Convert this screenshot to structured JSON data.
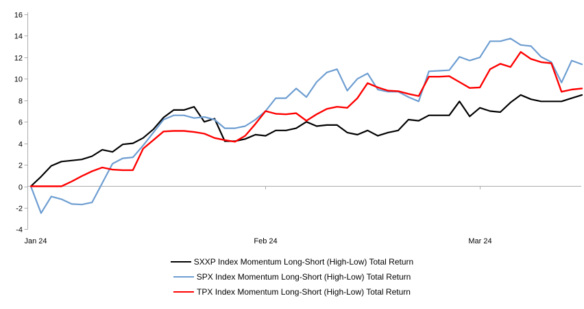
{
  "chart_data": {
    "type": "line",
    "title": "",
    "xlabel": "",
    "ylabel": "",
    "ylim": [
      -4,
      16
    ],
    "y_ticks": [
      16,
      14,
      12,
      10,
      8,
      6,
      4,
      2,
      0,
      -2,
      -4
    ],
    "grid": "zero-line-only",
    "legend_position": "bottom-center",
    "axis_color": "#ABABAB",
    "label_color": "#000000",
    "x_dates": [
      "2024-01-01",
      "2024-01-02",
      "2024-01-03",
      "2024-01-04",
      "2024-01-05",
      "2024-01-08",
      "2024-01-09",
      "2024-01-10",
      "2024-01-11",
      "2024-01-12",
      "2024-01-15",
      "2024-01-16",
      "2024-01-17",
      "2024-01-18",
      "2024-01-19",
      "2024-01-22",
      "2024-01-23",
      "2024-01-24",
      "2024-01-25",
      "2024-01-26",
      "2024-01-29",
      "2024-01-30",
      "2024-01-31",
      "2024-02-01",
      "2024-02-02",
      "2024-02-05",
      "2024-02-06",
      "2024-02-07",
      "2024-02-08",
      "2024-02-09",
      "2024-02-12",
      "2024-02-13",
      "2024-02-14",
      "2024-02-15",
      "2024-02-16",
      "2024-02-19",
      "2024-02-20",
      "2024-02-21",
      "2024-02-22",
      "2024-02-23",
      "2024-02-26",
      "2024-02-27",
      "2024-02-28",
      "2024-02-29",
      "2024-03-01",
      "2024-03-04",
      "2024-03-05",
      "2024-03-06",
      "2024-03-07",
      "2024-03-08",
      "2024-03-11",
      "2024-03-12",
      "2024-03-13",
      "2024-03-14",
      "2024-03-15"
    ],
    "x_tick_labels": [
      {
        "label": "Jan 24",
        "index": 0
      },
      {
        "label": "Feb 24",
        "index": 23
      },
      {
        "label": "Mar 24",
        "index": 44
      }
    ],
    "series": [
      {
        "name": "SXXP Index Momentum Long-Short (High-Low) Total Return",
        "color": "#000000",
        "values": [
          0,
          0.9,
          1.9,
          2.3,
          2.4,
          2.5,
          2.8,
          3.4,
          3.2,
          3.9,
          4.0,
          4.5,
          5.3,
          6.4,
          7.1,
          7.1,
          7.4,
          6.0,
          6.3,
          4.2,
          4.2,
          4.4,
          4.8,
          4.7,
          5.2,
          5.2,
          5.4,
          6.0,
          5.6,
          5.7,
          5.7,
          5.0,
          4.8,
          5.2,
          4.7,
          5.0,
          5.2,
          6.2,
          6.1,
          6.6,
          6.6,
          6.6,
          7.9,
          6.5,
          7.3,
          7.0,
          6.9,
          7.8,
          8.5,
          8.1,
          7.9,
          7.9,
          7.9,
          8.2,
          8.5
        ]
      },
      {
        "name": "SPX Index Momentum Long-Short (High-Low) Total Return",
        "color": "#6D9DD1",
        "values": [
          0,
          -2.5,
          -0.95,
          -1.2,
          -1.65,
          -1.7,
          -1.5,
          0.3,
          2.1,
          2.6,
          2.7,
          3.8,
          5.0,
          6.2,
          6.6,
          6.6,
          6.35,
          6.45,
          6.2,
          5.4,
          5.4,
          5.6,
          6.2,
          7.0,
          8.2,
          8.2,
          9.1,
          8.3,
          9.7,
          10.6,
          10.9,
          8.9,
          10.0,
          10.5,
          9.0,
          8.8,
          8.8,
          8.3,
          7.9,
          10.7,
          10.75,
          10.8,
          12.05,
          11.7,
          12.0,
          13.5,
          13.5,
          13.75,
          13.15,
          13.05,
          12.05,
          11.55,
          9.65,
          11.7,
          11.35
        ]
      },
      {
        "name": "TPX Index Momentum Long-Short (High-Low) Total Return",
        "color": "#FF0000",
        "values": [
          0,
          0,
          0,
          0,
          0.45,
          0.95,
          1.4,
          1.75,
          1.55,
          1.5,
          1.5,
          3.5,
          4.3,
          5.1,
          5.15,
          5.15,
          5.05,
          4.9,
          4.5,
          4.3,
          4.15,
          4.7,
          5.8,
          7.0,
          6.75,
          6.7,
          6.8,
          6.1,
          6.7,
          7.2,
          7.4,
          7.3,
          8.2,
          9.6,
          9.2,
          8.9,
          8.85,
          8.6,
          8.4,
          10.2,
          10.2,
          10.25,
          9.7,
          9.15,
          9.2,
          10.9,
          11.4,
          11.1,
          12.5,
          11.85,
          11.55,
          11.45,
          8.8,
          9.0,
          9.1
        ]
      }
    ]
  }
}
